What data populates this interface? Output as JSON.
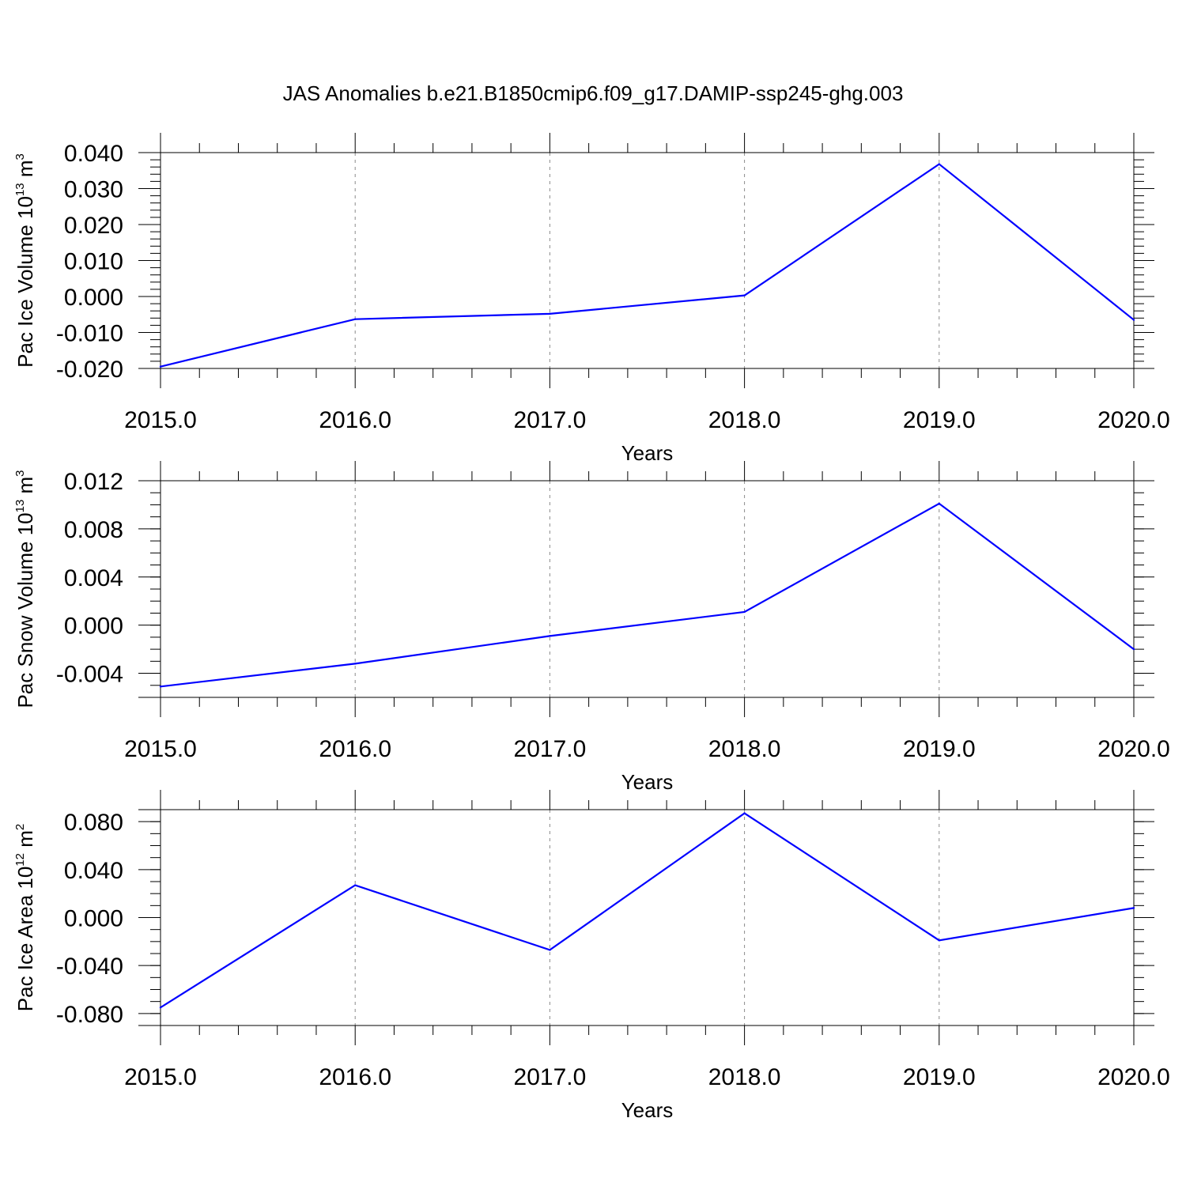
{
  "figure": {
    "title": "JAS Anomalies b.e21.B1850cmip6.f09_g17.DAMIP-ssp245-ghg.003"
  },
  "chart_data": [
    {
      "type": "line",
      "x": [
        2015.0,
        2016.0,
        2017.0,
        2018.0,
        2019.0,
        2020.0
      ],
      "series": [
        {
          "values": [
            -0.0195,
            -0.0063,
            -0.0048,
            0.0003,
            0.0368,
            -0.0065
          ],
          "color": "#0000ff"
        }
      ],
      "xlabel": "Years",
      "ylabel": {
        "text": "Pac Ice Volume 10",
        "sup": "13",
        "unit": " m",
        "unit_sup": "3"
      },
      "xlim": [
        2015.0,
        2020.0
      ],
      "ylim": [
        -0.02,
        0.04
      ],
      "xticks": [
        2015.0,
        2016.0,
        2017.0,
        2018.0,
        2019.0,
        2020.0
      ],
      "xtick_labels": [
        "2015.0",
        "2016.0",
        "2017.0",
        "2018.0",
        "2019.0",
        "2020.0"
      ],
      "yticks": [
        -0.02,
        -0.01,
        0.0,
        0.01,
        0.02,
        0.03,
        0.04
      ],
      "ytick_labels": [
        "-0.020",
        "-0.010",
        "0.000",
        "0.010",
        "0.020",
        "0.030",
        "0.040"
      ],
      "yminor_step": 0.002,
      "grid": "vertical dashed at major x ticks"
    },
    {
      "type": "line",
      "x": [
        2015.0,
        2016.0,
        2017.0,
        2018.0,
        2019.0,
        2020.0
      ],
      "series": [
        {
          "values": [
            -0.0051,
            -0.0032,
            -0.0009,
            0.0011,
            0.0101,
            -0.002
          ],
          "color": "#0000ff"
        }
      ],
      "xlabel": "Years",
      "ylabel": {
        "text": "Pac Snow Volume 10",
        "sup": "13",
        "unit": " m",
        "unit_sup": "3"
      },
      "xlim": [
        2015.0,
        2020.0
      ],
      "ylim": [
        -0.006,
        0.012
      ],
      "xticks": [
        2015.0,
        2016.0,
        2017.0,
        2018.0,
        2019.0,
        2020.0
      ],
      "xtick_labels": [
        "2015.0",
        "2016.0",
        "2017.0",
        "2018.0",
        "2019.0",
        "2020.0"
      ],
      "yticks": [
        -0.004,
        0.0,
        0.004,
        0.008,
        0.012
      ],
      "ytick_labels": [
        "-0.004",
        "0.000",
        "0.004",
        "0.008",
        "0.012"
      ],
      "yminor_step": 0.001,
      "grid": "vertical dashed at major x ticks"
    },
    {
      "type": "line",
      "x": [
        2015.0,
        2016.0,
        2017.0,
        2018.0,
        2019.0,
        2020.0
      ],
      "series": [
        {
          "values": [
            -0.075,
            0.027,
            -0.027,
            0.087,
            -0.019,
            0.008
          ],
          "color": "#0000ff"
        }
      ],
      "xlabel": "Years",
      "ylabel": {
        "text": "Pac Ice Area 10",
        "sup": "12",
        "unit": " m",
        "unit_sup": "2"
      },
      "xlim": [
        2015.0,
        2020.0
      ],
      "ylim": [
        -0.09,
        0.09
      ],
      "xticks": [
        2015.0,
        2016.0,
        2017.0,
        2018.0,
        2019.0,
        2020.0
      ],
      "xtick_labels": [
        "2015.0",
        "2016.0",
        "2017.0",
        "2018.0",
        "2019.0",
        "2020.0"
      ],
      "yticks": [
        -0.08,
        -0.04,
        0.0,
        0.04,
        0.08
      ],
      "ytick_labels": [
        "-0.080",
        "-0.040",
        "0.000",
        "0.040",
        "0.080"
      ],
      "yminor_step": 0.01,
      "grid": "vertical dashed at major x ticks"
    }
  ]
}
